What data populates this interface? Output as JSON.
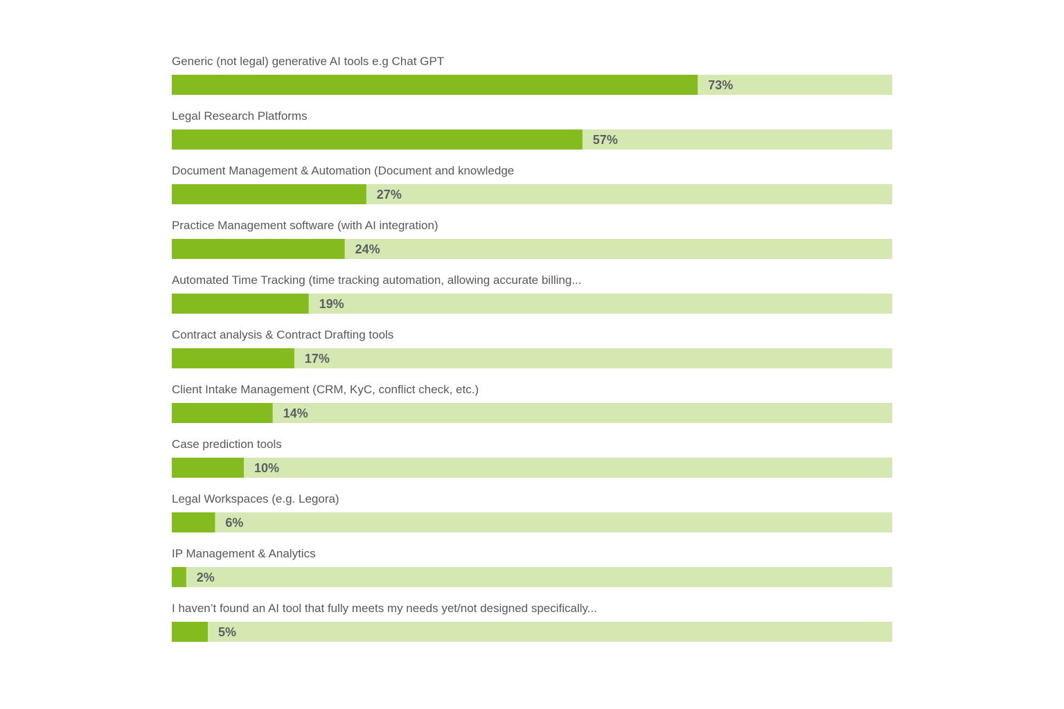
{
  "chart_data": {
    "type": "bar",
    "orientation": "horizontal",
    "categories": [
      "Generic (not legal) generative AI tools e.g Chat GPT",
      "Legal Research Platforms",
      "Document Management & Automation (Document and knowledge",
      "Practice Management software (with AI integration)",
      "Automated Time Tracking (time tracking automation, allowing accurate billing...",
      "Contract analysis & Contract Drafting tools",
      "Client Intake Management (CRM, KyC, conflict check, etc.)",
      "Case prediction tools",
      "Legal Workspaces (e.g. Legora)",
      "IP Management & Analytics",
      "I haven’t found an AI tool that fully meets my needs yet/not designed specifically..."
    ],
    "values": [
      73,
      57,
      27,
      24,
      19,
      17,
      14,
      10,
      6,
      2,
      5
    ],
    "value_labels": [
      "73%",
      "57%",
      "27%",
      "24%",
      "19%",
      "17%",
      "14%",
      "10%",
      "6%",
      "2%",
      "5%"
    ],
    "xlim": [
      0,
      100
    ],
    "title": "",
    "xlabel": "",
    "ylabel": "",
    "grid": false,
    "legend": "none",
    "colors": {
      "bar": "#84bc20",
      "track": "#d5e8b2",
      "label_text": "#55585c",
      "value_text": "#5b5e61"
    }
  }
}
